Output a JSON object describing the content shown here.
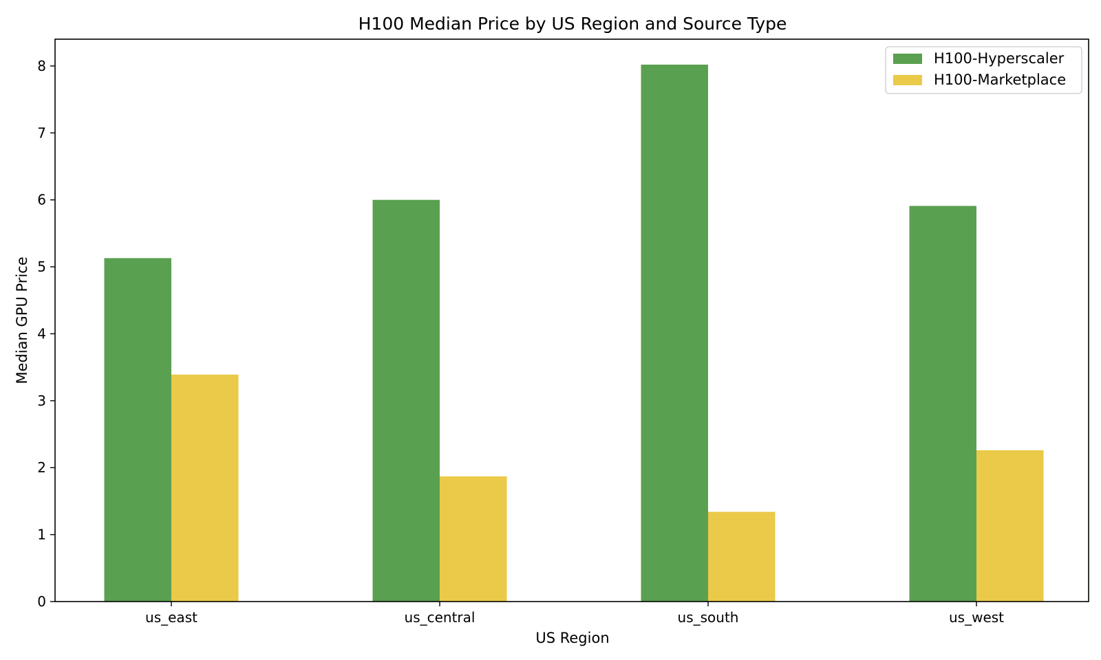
{
  "chart_data": {
    "type": "bar",
    "title": "H100 Median Price by US Region and Source Type",
    "xlabel": "US Region",
    "ylabel": "Median GPU Price",
    "categories": [
      "us_east",
      "us_central",
      "us_south",
      "us_west"
    ],
    "series": [
      {
        "name": "H100-Hyperscaler",
        "color": "#5aa051",
        "values": [
          5.13,
          6.0,
          8.02,
          5.91
        ]
      },
      {
        "name": "H100-Marketplace",
        "color": "#eaca48",
        "values": [
          3.39,
          1.87,
          1.34,
          2.26
        ]
      }
    ],
    "ylim": [
      0,
      8.4
    ],
    "yticks": [
      "0",
      "1",
      "2",
      "3",
      "4",
      "5",
      "6",
      "7",
      "8"
    ],
    "grid": false,
    "legend_position": "top-right"
  }
}
